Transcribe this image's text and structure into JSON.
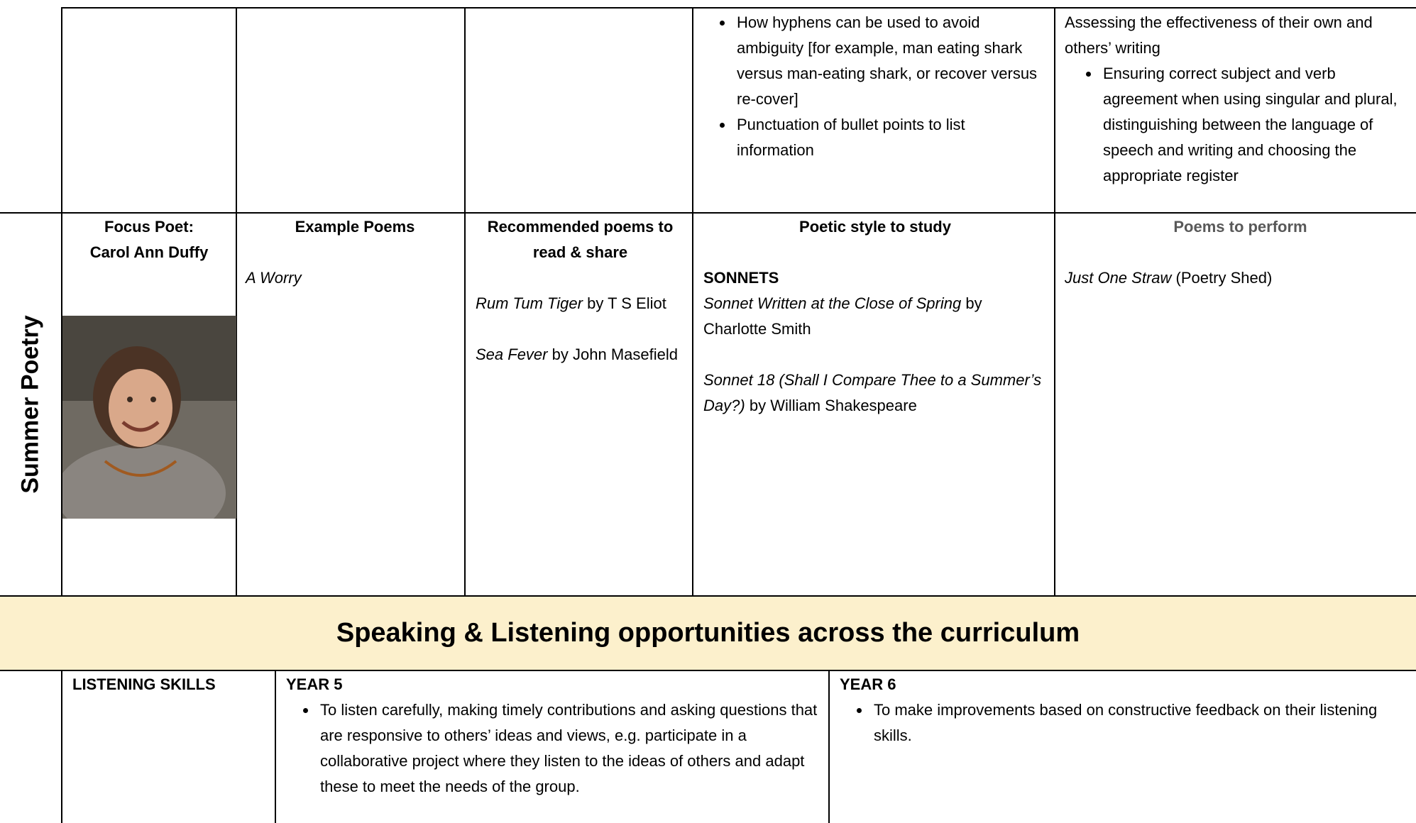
{
  "top_row": {
    "col4_bullets": [
      "How hyphens can be used to avoid ambiguity [for example, man eating shark versus man-eating shark, or recover versus re-cover]",
      "Punctuation of bullet points to list information"
    ],
    "col5_intro": "Assessing the effectiveness of their own and others’ writing",
    "col5_bullets": [
      "Ensuring correct subject and verb agreement when using singular and plural, distinguishing between the language of speech and writing and choosing the appropriate register"
    ]
  },
  "summer_poetry": {
    "label": "Summer Poetry",
    "focus_poet": {
      "heading": "Focus Poet:",
      "name": "Carol Ann Duffy"
    },
    "example_poems": {
      "heading": "Example Poems",
      "poems": [
        "A Worry"
      ]
    },
    "recommended": {
      "heading": "Recommended poems to read & share",
      "items": [
        {
          "title": "Rum Tum Tiger",
          "author": "by T S Eliot"
        },
        {
          "title": "Sea Fever",
          "author": "by John Masefield"
        }
      ]
    },
    "poetic_style": {
      "heading": "Poetic style to study",
      "style": "SONNETS",
      "items": [
        {
          "title": "Sonnet Written at the Close of Spring",
          "author": "by Charlotte Smith"
        },
        {
          "title": "Sonnet 18 (Shall I Compare Thee to a Summer’s Day?)",
          "author": "by William Shakespeare"
        }
      ]
    },
    "perform": {
      "heading": "Poems to perform",
      "items": [
        {
          "title": "Just One Straw",
          "source": "(Poetry Shed)"
        }
      ]
    }
  },
  "speaking_listening": {
    "title": "Speaking & Listening opportunities across the curriculum",
    "rows": [
      {
        "skill": "LISTENING SKILLS",
        "year5": {
          "heading": "YEAR 5",
          "bullets": [
            "To listen carefully, making timely contributions and asking questions that are responsive to others’ ideas and views, e.g. participate in a collaborative project where they listen to the ideas of others and adapt these to meet the needs of the group."
          ]
        },
        "year6": {
          "heading": "YEAR 6",
          "bullets": [
            "To make improvements based on constructive feedback on their listening skills."
          ]
        }
      }
    ]
  }
}
